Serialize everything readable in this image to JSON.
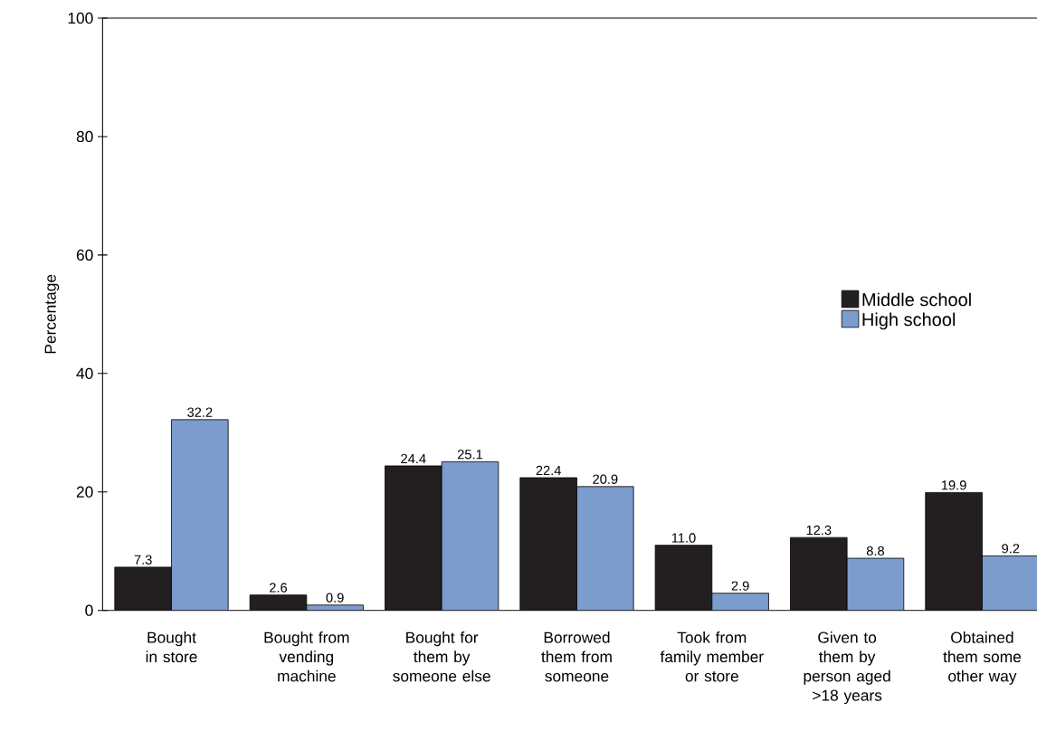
{
  "chart_data": {
    "type": "bar",
    "ylabel": "Percentage",
    "categories": [
      "Bought in store",
      "Bought from vending machine",
      "Bought for them by someone else",
      "Borrowed them from someone",
      "Took from family member or store",
      "Given to them by person aged >18 years",
      "Obtained them some other way"
    ],
    "series": [
      {
        "name": "Middle school",
        "color": "#231f20",
        "values": [
          7.3,
          2.6,
          24.4,
          22.4,
          11.0,
          12.3,
          19.9
        ],
        "value_labels": [
          "7.3",
          "2.6",
          "24.4",
          "22.4",
          "11.0",
          "12.3",
          "19.9"
        ]
      },
      {
        "name": "High school",
        "color": "#7b9ccc",
        "values": [
          32.2,
          0.9,
          25.1,
          20.9,
          2.9,
          8.8,
          9.2
        ],
        "value_labels": [
          "32.2",
          "0.9",
          "25.1",
          "20.9",
          "2.9",
          "8.8",
          "9.2"
        ]
      }
    ],
    "ylim": [
      0,
      100
    ],
    "yticks": [
      0,
      20,
      40,
      60,
      80,
      100
    ],
    "legend": "right",
    "grid": false
  }
}
